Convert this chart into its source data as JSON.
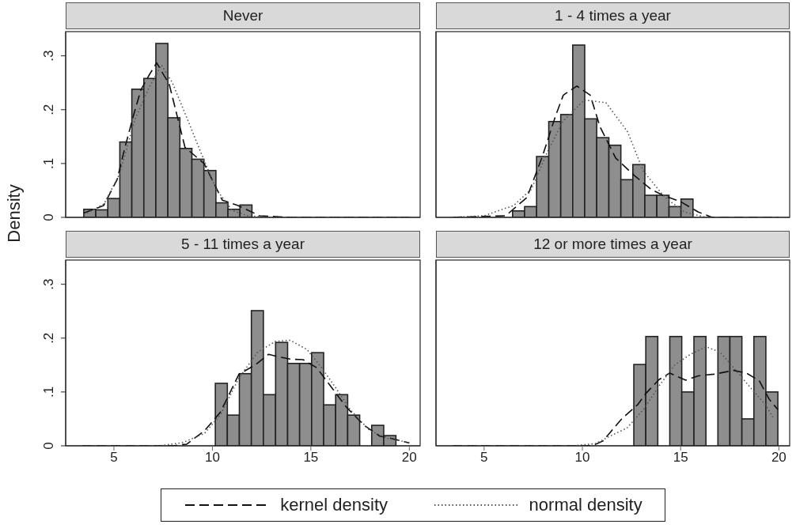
{
  "chart_data": [
    {
      "type": "histogram",
      "title": "Never",
      "ylabel": "Density",
      "legend": "bottom",
      "tick_labels": "y",
      "color": "#8e8e8e",
      "bins": [
        3.47,
        4.08,
        4.69,
        5.3,
        5.91,
        6.52,
        7.13,
        7.74,
        8.35,
        8.96,
        9.57,
        10.18,
        10.79,
        11.4,
        12.01
      ],
      "values": [
        0.015,
        0.014,
        0.035,
        0.14,
        0.238,
        0.258,
        0.323,
        0.185,
        0.128,
        0.108,
        0.087,
        0.027,
        0.015,
        0.023
      ],
      "series": [
        {
          "name": "kernel density",
          "type": "line",
          "line_style": "dashed",
          "color": "#111111",
          "x": [
            3.47,
            4.48,
            5.16,
            5.56,
            6.0,
            6.37,
            6.8,
            7.17,
            7.81,
            8.2,
            8.61,
            9.58,
            10.5,
            11.3,
            12.4,
            14,
            20
          ],
          "values": [
            0.008,
            0.022,
            0.07,
            0.13,
            0.19,
            0.237,
            0.265,
            0.287,
            0.247,
            0.19,
            0.13,
            0.1,
            0.032,
            0.022,
            0.003,
            0,
            0
          ]
        },
        {
          "name": "normal density",
          "type": "line",
          "line_style": "dotted",
          "color": "#555555",
          "x": [
            3.47,
            4.5,
            5.28,
            6.08,
            6.77,
            7.41,
            7.97,
            8.78,
            9.42,
            10.2,
            11.0,
            11.8,
            13,
            20
          ],
          "values": [
            0.005,
            0.025,
            0.08,
            0.183,
            0.24,
            0.283,
            0.25,
            0.178,
            0.12,
            0.052,
            0.013,
            0.003,
            0,
            0
          ]
        }
      ],
      "xlim": [
        2.55,
        20.55
      ],
      "ylim": [
        0,
        0.345
      ],
      "yticks": [
        0,
        {
          "value": 0.1,
          "label": ".1"
        },
        {
          "value": 0.2,
          "label": ".2"
        },
        {
          "value": 0.3,
          "label": ".3"
        }
      ]
    },
    {
      "type": "histogram",
      "title": "1 - 4 times a year",
      "tick_labels": false,
      "color": "#8e8e8e",
      "bins": [
        6.45,
        7.06,
        7.67,
        8.29,
        8.9,
        9.51,
        10.12,
        10.73,
        11.35,
        11.96,
        12.57,
        13.18,
        13.79,
        14.41,
        15.02,
        15.63
      ],
      "values": [
        0.012,
        0.02,
        0.113,
        0.178,
        0.191,
        0.32,
        0.183,
        0.148,
        0.134,
        0.07,
        0.098,
        0.041,
        0.041,
        0.02,
        0.034
      ],
      "series": [
        {
          "type": "line",
          "line_style": "dashed",
          "color": "#111111",
          "x": [
            3.4,
            6.1,
            7.18,
            7.98,
            8.63,
            9.03,
            9.72,
            10.4,
            10.9,
            11.7,
            12.7,
            13.5,
            14.15,
            14.96,
            15.9,
            16.6,
            20
          ],
          "values": [
            0,
            0.003,
            0.037,
            0.115,
            0.188,
            0.227,
            0.244,
            0.227,
            0.168,
            0.11,
            0.076,
            0.052,
            0.04,
            0.03,
            0.01,
            0,
            0
          ]
        },
        {
          "type": "line",
          "line_style": "dotted",
          "color": "#555555",
          "x": [
            3.4,
            5,
            6.5,
            7.4,
            8.2,
            9.0,
            10.1,
            11.2,
            12.3,
            13.1,
            14.2,
            15.2,
            16.3,
            20
          ],
          "values": [
            0,
            0.003,
            0.022,
            0.052,
            0.12,
            0.178,
            0.218,
            0.213,
            0.159,
            0.086,
            0.037,
            0.01,
            0,
            0
          ]
        }
      ],
      "xlim": [
        2.55,
        20.55
      ],
      "ylim": [
        0,
        0.345
      ]
    },
    {
      "type": "histogram",
      "title": "5 - 11 times a year",
      "color": "#8e8e8e",
      "bins": [
        10.15,
        10.76,
        11.37,
        11.98,
        12.59,
        13.21,
        13.82,
        14.43,
        15.04,
        15.65,
        16.26,
        16.87,
        17.48,
        18.09,
        18.7,
        19.32
      ],
      "values": [
        0.116,
        0.057,
        0.134,
        0.251,
        0.095,
        0.192,
        0.153,
        0.153,
        0.173,
        0.076,
        0.095,
        0.057,
        0,
        0.038,
        0.019
      ],
      "series": [
        {
          "type": "line",
          "line_style": "dashed",
          "color": "#111111",
          "x": [
            3.4,
            8.0,
            8.7,
            9.6,
            10.4,
            11.35,
            12.17,
            12.85,
            13.4,
            13.95,
            14.6,
            15.3,
            16.1,
            16.8,
            17.7,
            18.5,
            19.05,
            20
          ],
          "values": [
            0,
            0,
            0.003,
            0.028,
            0.062,
            0.133,
            0.15,
            0.17,
            0.165,
            0.161,
            0.16,
            0.145,
            0.106,
            0.072,
            0.038,
            0.018,
            0.014,
            0.005
          ]
        },
        {
          "type": "line",
          "line_style": "dotted",
          "color": "#555555",
          "x": [
            3.4,
            7.3,
            8.5,
            9.6,
            10.4,
            11.35,
            12.3,
            13.2,
            13.95,
            14.8,
            15.55,
            16.2,
            17.0,
            18.0,
            18.9,
            20
          ],
          "values": [
            0,
            0,
            0.006,
            0.023,
            0.057,
            0.126,
            0.174,
            0.194,
            0.196,
            0.179,
            0.145,
            0.111,
            0.067,
            0.028,
            0.014,
            0.006
          ]
        }
      ],
      "xlim": [
        2.55,
        20.55
      ],
      "ylim": [
        0,
        0.345
      ],
      "xticks": [
        5,
        10,
        15,
        20
      ],
      "yticks": [
        0,
        {
          "value": 0.1,
          "label": ".1"
        },
        {
          "value": 0.2,
          "label": ".2"
        },
        {
          "value": 0.3,
          "label": ".3"
        }
      ]
    },
    {
      "type": "histogram",
      "title": "12 or more times a year",
      "tick_labels": "x",
      "color": "#8e8e8e",
      "bins": [
        12.62,
        13.23,
        13.84,
        14.45,
        15.06,
        15.68,
        16.29,
        16.9,
        17.51,
        18.12,
        18.73,
        19.34,
        19.95
      ],
      "values": [
        0.151,
        0.203,
        0,
        0.203,
        0.1,
        0.203,
        0,
        0.203,
        0.203,
        0.05,
        0.203,
        0.1
      ],
      "series": [
        {
          "type": "line",
          "line_style": "dashed",
          "color": "#111111",
          "x": [
            3.4,
            10.5,
            11.05,
            12.0,
            12.83,
            13.2,
            13.9,
            14.45,
            15.26,
            15.9,
            16.7,
            17.7,
            18.35,
            19.0,
            19.5,
            19.95
          ],
          "values": [
            0,
            0,
            0.009,
            0.05,
            0.077,
            0.096,
            0.123,
            0.135,
            0.122,
            0.13,
            0.133,
            0.14,
            0.135,
            0.121,
            0.087,
            0.067
          ]
        },
        {
          "type": "line",
          "line_style": "dotted",
          "color": "#555555",
          "x": [
            3.4,
            9.5,
            10.66,
            11.47,
            12.27,
            13.1,
            13.9,
            14.7,
            15.5,
            16.3,
            17.0,
            17.7,
            18.6,
            19.3,
            19.7
          ],
          "values": [
            0,
            0,
            0.004,
            0.019,
            0.033,
            0.067,
            0.111,
            0.15,
            0.17,
            0.184,
            0.174,
            0.145,
            0.106,
            0.077,
            0.053
          ]
        }
      ],
      "xlim": [
        2.55,
        20.55
      ],
      "ylim": [
        0,
        0.345
      ],
      "xticks": [
        5,
        10,
        15,
        20
      ]
    }
  ]
}
